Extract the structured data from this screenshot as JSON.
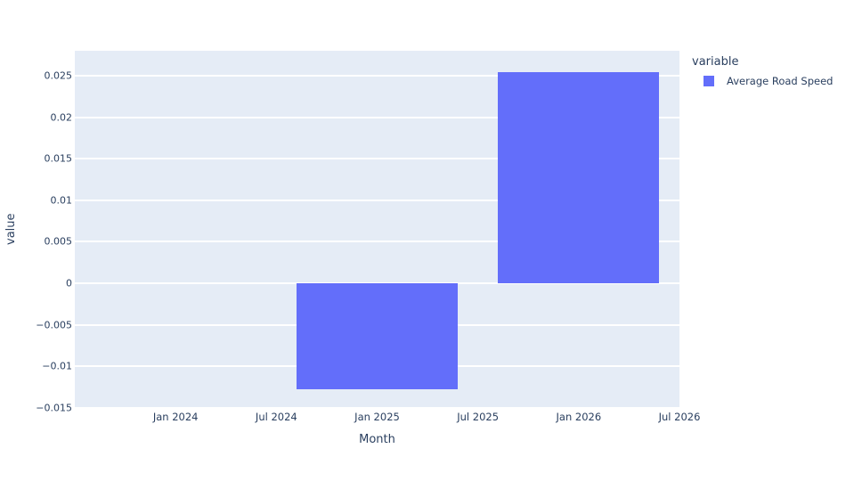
{
  "chart_data": {
    "type": "bar",
    "title": "",
    "xlabel": "Month",
    "ylabel": "value",
    "series": [
      {
        "name": "Average Road Speed",
        "color": "#636EFA",
        "x": [
          "Jan 2025",
          "Jan 2026"
        ],
        "values": [
          -0.0128,
          0.0254
        ]
      }
    ],
    "legend": {
      "title": "variable",
      "position": "top-right",
      "items": [
        "Average Road Speed"
      ]
    },
    "yticks": [
      0.025,
      0.02,
      0.015,
      0.01,
      0.005,
      0,
      -0.005,
      -0.01,
      -0.015
    ],
    "ytick_labels": [
      "0.025",
      "0.02",
      "0.015",
      "0.01",
      "0.005",
      "0",
      "−0.005",
      "−0.01",
      "−0.015"
    ],
    "xtick_labels": [
      "Jan 2024",
      "Jul 2024",
      "Jan 2025",
      "Jul 2025",
      "Jan 2026",
      "Jul 2026"
    ],
    "xtick_positions_months": [
      0,
      6,
      12,
      18,
      24,
      30
    ],
    "bar_centers_months": [
      12,
      24
    ],
    "bar_width_months": 9.6,
    "xlim_months": [
      -6,
      30
    ],
    "ylim": [
      -0.015,
      0.028
    ],
    "grid": "horizontal-only",
    "colors": {
      "plot_background": "#E5ECF6",
      "gridline": "#FFFFFF",
      "text": "#2A3F5F",
      "bar": "#636EFA",
      "page_background": "#FFFFFF"
    }
  }
}
